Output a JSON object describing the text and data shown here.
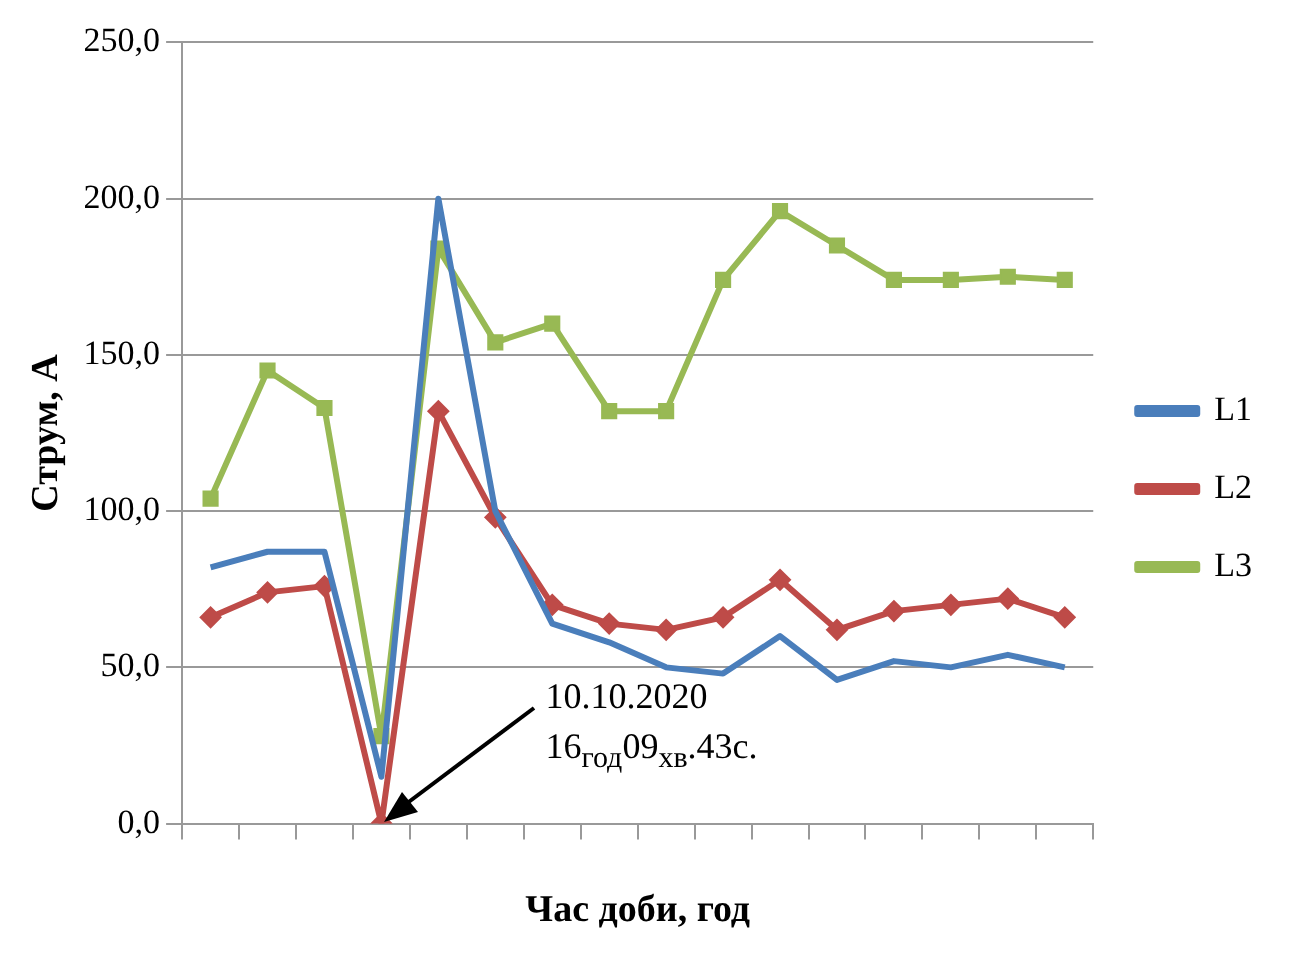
{
  "chart_data": {
    "type": "line",
    "xlabel": "Час доби, год",
    "ylabel": "Струм, А",
    "categories": [
      null,
      null,
      null,
      null,
      null,
      null,
      null,
      null,
      null,
      null,
      null,
      null,
      null,
      null,
      null,
      null
    ],
    "series": [
      {
        "name": "L1",
        "color": "#4a7ebb",
        "marker": "none",
        "values": [
          82,
          87,
          87,
          15,
          200,
          100,
          64,
          58,
          50,
          48,
          60,
          46,
          52,
          50,
          54,
          50
        ]
      },
      {
        "name": "L2",
        "color": "#be4b48",
        "marker": "diamond",
        "values": [
          66,
          74,
          76,
          0,
          132,
          98,
          70,
          64,
          62,
          66,
          78,
          62,
          68,
          70,
          72,
          66
        ]
      },
      {
        "name": "L3",
        "color": "#98b954",
        "marker": "square",
        "values": [
          104,
          145,
          133,
          28,
          184,
          154,
          160,
          132,
          132,
          174,
          196,
          185,
          174,
          174,
          175,
          174
        ]
      }
    ],
    "ylim": [
      0,
      250
    ],
    "yticks": [
      {
        "value": 0,
        "label": "0,0"
      },
      {
        "value": 50,
        "label": "50,0"
      },
      {
        "value": 100,
        "label": "100,0"
      },
      {
        "value": 150,
        "label": "150,0"
      },
      {
        "value": 200,
        "label": "200,0"
      },
      {
        "value": 250,
        "label": "250,0"
      }
    ],
    "grid": "y",
    "legend": "right",
    "line_style": "solid",
    "annotations": [
      "10.10.2020",
      "16$_{год}$09$_{хв}$.43с."
    ]
  }
}
